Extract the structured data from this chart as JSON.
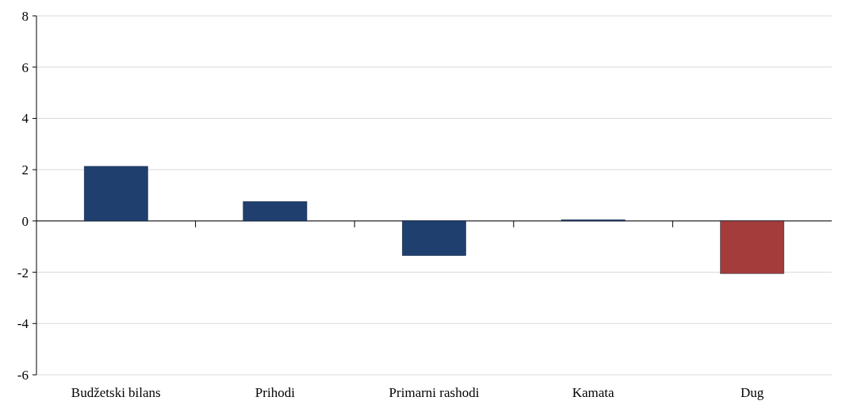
{
  "chart_data": {
    "type": "bar",
    "categories": [
      "Budžetski bilans",
      "Prihodi",
      "Primarni rashodi",
      "Kamata",
      "Dug"
    ],
    "values": [
      2.13,
      0.76,
      -1.35,
      0.05,
      -2.05
    ],
    "colors": [
      "#1f3f6f",
      "#1f3f6f",
      "#1f3f6f",
      "#1f3f6f",
      "#a33c3a"
    ],
    "ylim": [
      -6,
      8
    ],
    "yticks": [
      -6,
      -4,
      -2,
      0,
      2,
      4,
      6,
      8
    ],
    "grid": "y"
  }
}
